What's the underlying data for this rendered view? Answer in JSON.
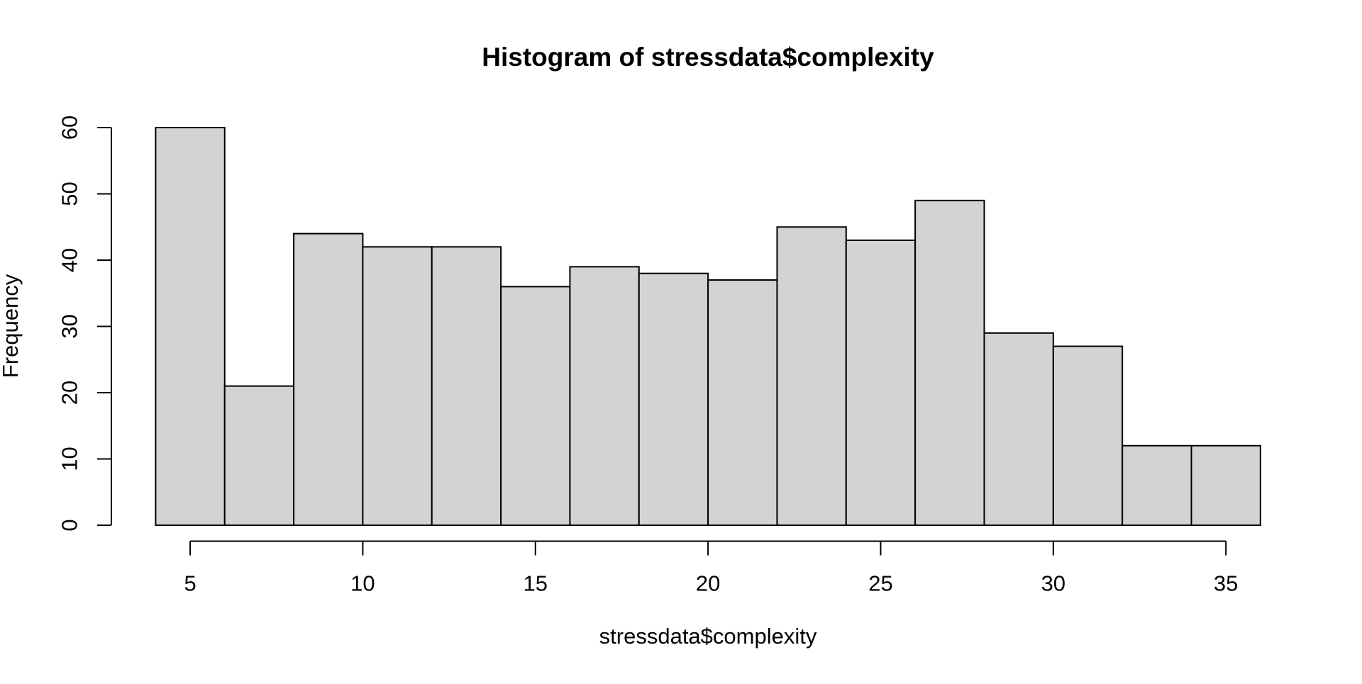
{
  "chart_data": {
    "type": "bar",
    "subtype": "histogram",
    "title": "Histogram of stressdata$complexity",
    "xlabel": "stressdata$complexity",
    "ylabel": "Frequency",
    "bin_start": 4,
    "bin_end": 36,
    "bin_width": 2,
    "categories": [
      "4-6",
      "6-8",
      "8-10",
      "10-12",
      "12-14",
      "14-16",
      "16-18",
      "18-20",
      "20-22",
      "22-24",
      "24-26",
      "26-28",
      "28-30",
      "30-32",
      "32-34",
      "34-36"
    ],
    "values": [
      60,
      21,
      44,
      42,
      42,
      36,
      39,
      38,
      37,
      45,
      43,
      49,
      29,
      27,
      12,
      12
    ],
    "x_ticks": [
      5,
      10,
      15,
      20,
      25,
      30,
      35
    ],
    "y_ticks": [
      0,
      10,
      20,
      30,
      40,
      50,
      60
    ],
    "xlim": [
      4,
      36
    ],
    "ylim": [
      0,
      60
    ],
    "grid": false,
    "legend": null,
    "bar_fill": "#d3d3d3",
    "bar_stroke": "#000000",
    "axis_color": "#000000",
    "text_color": "#000000",
    "background": "#ffffff"
  }
}
